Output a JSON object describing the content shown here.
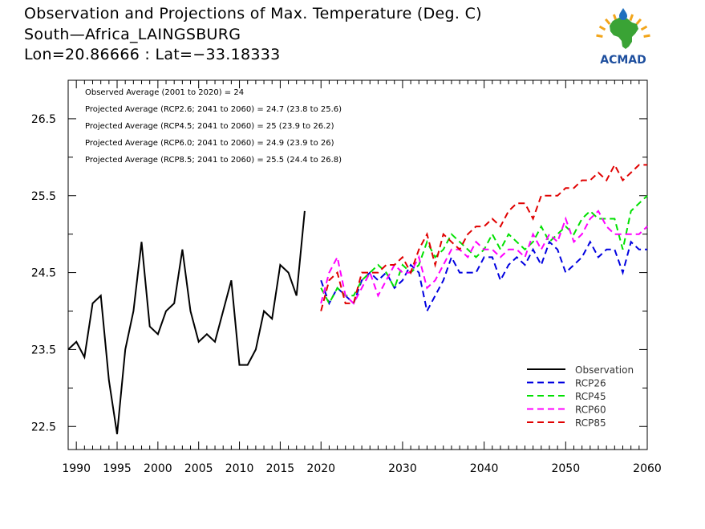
{
  "header": {
    "title_line1": "Observation and Projections of Max. Temperature (Deg. C)",
    "title_line2": "South—Africa_LAINGSBURG",
    "title_line3": "Lon=20.86666 : Lat=−33.18333"
  },
  "logo": {
    "text": "ACMAD",
    "colors": {
      "continent": "#3aa335",
      "drop": "#1e6fbf",
      "rays": "#f2a51a",
      "text": "#1e4f9e"
    }
  },
  "annotations": [
    "Observed Average (2001 to 2020) = 24",
    "Projected Average (RCP2.6; 2041 to 2060) = 24.7 (23.8 to 25.6)",
    "Projected Average (RCP4.5; 2041 to 2060) = 25 (23.9 to 26.2)",
    "Projected Average (RCP6.0; 2041 to 2060) = 24.9 (23.9 to 26)",
    "Projected Average (RCP8.5; 2041 to 2060) = 25.5 (24.4 to 26.8)"
  ],
  "chart_data": {
    "type": "line",
    "title": "Observation and Projections of Max. Temperature (Deg. C)",
    "xlim": [
      1989,
      2060
    ],
    "ylim": [
      22.2,
      27.0
    ],
    "x_ticks_major": [
      1990,
      1995,
      2000,
      2005,
      2010,
      2015,
      2020,
      2030,
      2040,
      2050,
      2060
    ],
    "x_tick_labels": [
      "1990",
      "1995",
      "2000",
      "2005",
      "2010",
      "2015",
      "2020",
      "2030",
      "2040",
      "2050",
      "2060"
    ],
    "y_ticks_major": [
      22.5,
      23.5,
      24.5,
      25.5,
      26.5
    ],
    "y_tick_labels": [
      "22.5",
      "23.5",
      "24.5",
      "25.5",
      "26.5"
    ],
    "legend_placement": "bottom-right",
    "series": [
      {
        "name": "Observation",
        "color": "#000000",
        "style": "solid",
        "x": [
          1989,
          1990,
          1991,
          1992,
          1993,
          1994,
          1995,
          1996,
          1997,
          1998,
          1999,
          2000,
          2001,
          2002,
          2003,
          2004,
          2005,
          2006,
          2007,
          2008,
          2009,
          2010,
          2011,
          2012,
          2013,
          2014,
          2015,
          2016,
          2017,
          2018,
          2019
        ],
        "values": [
          23.5,
          23.6,
          23.4,
          24.1,
          24.2,
          23.1,
          22.4,
          23.5,
          24.0,
          24.9,
          23.8,
          23.7,
          24.0,
          24.1,
          24.8,
          24.0,
          23.6,
          23.7,
          23.6,
          24.0,
          24.4,
          23.3,
          23.3,
          23.5,
          24.0,
          23.9,
          24.6,
          24.5,
          24.2,
          25.3,
          null
        ]
      },
      {
        "name": "RCP26",
        "color": "#0000e0",
        "style": "dashed",
        "x": [
          2020,
          2021,
          2022,
          2023,
          2024,
          2025,
          2026,
          2027,
          2028,
          2029,
          2030,
          2031,
          2032,
          2033,
          2034,
          2035,
          2036,
          2037,
          2038,
          2039,
          2040,
          2041,
          2042,
          2043,
          2044,
          2045,
          2046,
          2047,
          2048,
          2049,
          2050,
          2051,
          2052,
          2053,
          2054,
          2055,
          2056,
          2057,
          2058,
          2059,
          2060
        ],
        "values": [
          24.4,
          24.1,
          24.3,
          24.2,
          24.1,
          24.4,
          24.5,
          24.4,
          24.5,
          24.3,
          24.4,
          24.6,
          24.5,
          24.0,
          24.2,
          24.4,
          24.7,
          24.5,
          24.5,
          24.5,
          24.7,
          24.7,
          24.4,
          24.6,
          24.7,
          24.6,
          24.8,
          24.6,
          24.9,
          24.8,
          24.5,
          24.6,
          24.7,
          24.9,
          24.7,
          24.8,
          24.8,
          24.5,
          24.9,
          24.8,
          24.8
        ]
      },
      {
        "name": "RCP45",
        "color": "#00e000",
        "style": "dashed",
        "x": [
          2020,
          2021,
          2022,
          2023,
          2024,
          2025,
          2026,
          2027,
          2028,
          2029,
          2030,
          2031,
          2032,
          2033,
          2034,
          2035,
          2036,
          2037,
          2038,
          2039,
          2040,
          2041,
          2042,
          2043,
          2044,
          2045,
          2046,
          2047,
          2048,
          2049,
          2050,
          2051,
          2052,
          2053,
          2054,
          2055,
          2056,
          2057,
          2058,
          2059,
          2060
        ],
        "values": [
          24.3,
          24.1,
          24.3,
          24.2,
          24.2,
          24.4,
          24.5,
          24.6,
          24.5,
          24.3,
          24.6,
          24.5,
          24.6,
          24.9,
          24.7,
          24.8,
          25.0,
          24.9,
          24.8,
          24.7,
          24.8,
          25.0,
          24.8,
          25.0,
          24.9,
          24.8,
          24.9,
          25.1,
          24.9,
          25.0,
          25.1,
          25.0,
          25.2,
          25.3,
          25.2,
          25.2,
          25.2,
          24.8,
          25.3,
          25.4,
          25.5
        ]
      },
      {
        "name": "RCP60",
        "color": "#ff00ff",
        "style": "dashed",
        "x": [
          2020,
          2021,
          2022,
          2023,
          2024,
          2025,
          2026,
          2027,
          2028,
          2029,
          2030,
          2031,
          2032,
          2033,
          2034,
          2035,
          2036,
          2037,
          2038,
          2039,
          2040,
          2041,
          2042,
          2043,
          2044,
          2045,
          2046,
          2047,
          2048,
          2049,
          2050,
          2051,
          2052,
          2053,
          2054,
          2055,
          2056,
          2057,
          2058,
          2059,
          2060
        ],
        "values": [
          24.1,
          24.5,
          24.7,
          24.2,
          24.1,
          24.3,
          24.5,
          24.2,
          24.4,
          24.6,
          24.5,
          24.5,
          24.7,
          24.3,
          24.4,
          24.6,
          24.8,
          24.8,
          24.7,
          24.9,
          24.8,
          24.8,
          24.7,
          24.8,
          24.8,
          24.7,
          25.0,
          24.8,
          25.0,
          24.9,
          25.2,
          24.9,
          25.0,
          25.2,
          25.3,
          25.1,
          25.0,
          25.0,
          25.0,
          25.0,
          25.1
        ]
      },
      {
        "name": "RCP85",
        "color": "#e00000",
        "style": "dashed",
        "x": [
          2020,
          2021,
          2022,
          2023,
          2024,
          2025,
          2026,
          2027,
          2028,
          2029,
          2030,
          2031,
          2032,
          2033,
          2034,
          2035,
          2036,
          2037,
          2038,
          2039,
          2040,
          2041,
          2042,
          2043,
          2044,
          2045,
          2046,
          2047,
          2048,
          2049,
          2050,
          2051,
          2052,
          2053,
          2054,
          2055,
          2056,
          2057,
          2058,
          2059,
          2060
        ],
        "values": [
          24.0,
          24.4,
          24.5,
          24.1,
          24.1,
          24.5,
          24.5,
          24.5,
          24.6,
          24.6,
          24.7,
          24.5,
          24.8,
          25.0,
          24.6,
          25.0,
          24.9,
          24.8,
          25.0,
          25.1,
          25.1,
          25.2,
          25.1,
          25.3,
          25.4,
          25.4,
          25.2,
          25.5,
          25.5,
          25.5,
          25.6,
          25.6,
          25.7,
          25.7,
          25.8,
          25.7,
          25.9,
          25.7,
          25.8,
          25.9,
          25.9
        ]
      }
    ]
  }
}
